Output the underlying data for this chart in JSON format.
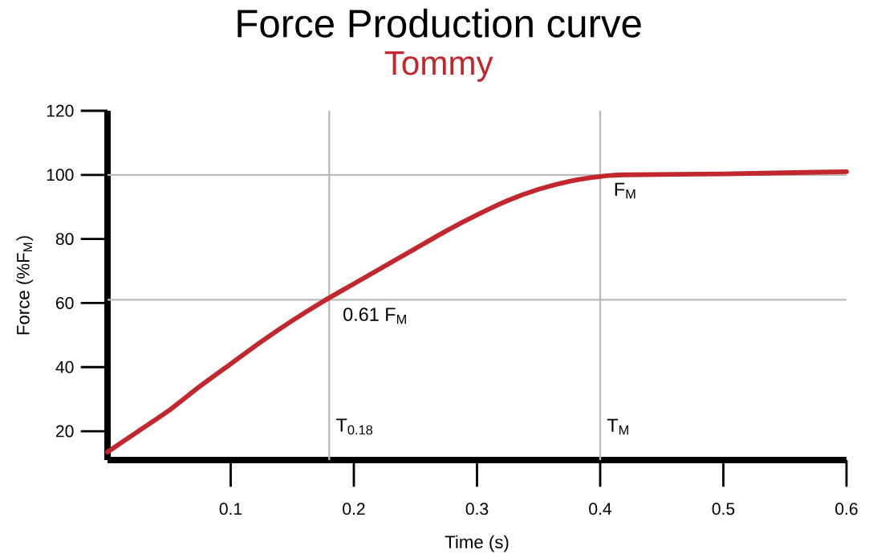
{
  "chart_data": {
    "type": "line",
    "title": "Force Production curve",
    "subtitle": "Tommy",
    "xlabel": "Time (s)",
    "ylabel": "Force (%F$_{M}$)",
    "x": [
      0,
      0.025,
      0.05,
      0.075,
      0.1,
      0.125,
      0.15,
      0.175,
      0.2,
      0.225,
      0.25,
      0.275,
      0.3,
      0.325,
      0.35,
      0.375,
      0.4,
      0.42,
      0.5,
      0.6
    ],
    "series": [
      {
        "color": "#c1272d",
        "values": [
          13.5,
          20,
          26.5,
          34,
          41,
          48,
          54.5,
          60.5,
          66,
          71.5,
          77,
          82.5,
          87.5,
          92,
          95.5,
          98,
          99.5,
          100,
          100.3,
          101
        ]
      }
    ],
    "xlim": [
      0,
      0.6
    ],
    "ylim": [
      11,
      120
    ],
    "yticks": [
      20,
      40,
      60,
      80,
      100,
      120
    ],
    "xticks": [
      0.1,
      0.2,
      0.3,
      0.4,
      0.5,
      0.6
    ],
    "ref_lines": [
      {
        "axis": "y",
        "value": 100,
        "color": "#bbbbbb"
      },
      {
        "axis": "y",
        "value": 61,
        "color": "#bbbbbb"
      },
      {
        "axis": "x",
        "value": 0.18,
        "label": "T$_{0.18}$",
        "color": "#bbbbbb"
      },
      {
        "axis": "x",
        "value": 0.4,
        "label": "T$_{M}$",
        "color": "#bbbbbb"
      }
    ],
    "annotations": [
      {
        "text": "F$_{M}$",
        "x": 0.4,
        "y": 100
      },
      {
        "text": "0.61 F$_{M}$",
        "x": 0.18,
        "y": 61
      }
    ]
  }
}
